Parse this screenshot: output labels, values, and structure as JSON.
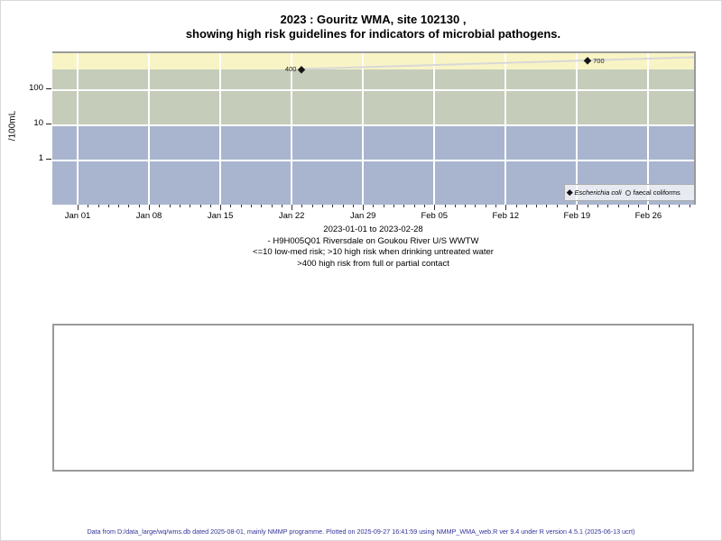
{
  "title": {
    "line1": "2023 : Gouritz WMA, site 102130 ,",
    "line2": "showing high risk guidelines for indicators of microbial pathogens."
  },
  "caption": {
    "line1": "2023-01-01 to 2023-02-28",
    "line2": "- H9H005Q01 Riversdale on Goukou River U/S WWTW",
    "line3": "<=10 low-med risk; >10 high risk when drinking untreated water",
    "line4": ">400 high risk from full or partial contact"
  },
  "footer": "Data from D:/data_large/wq/wms.db dated 2025-08-01, mainly NMMP programme. Plotted on 2025-09-27 16:41:59 using NMMP_WMA_web.R ver 9.4 under R version 4.5.1 (2025-06-13 ucrt)",
  "legend": {
    "items": [
      {
        "label": "Escherichia coli",
        "marker": "filled-diamond"
      },
      {
        "label": "faecal coliforms",
        "marker": "open-circle"
      }
    ]
  },
  "chart_data": {
    "type": "line",
    "title": "2023 : Gouritz WMA, site 102130 , showing high risk guidelines for indicators of microbial pathogens.",
    "ylabel": "/100mL",
    "y_scale": "log10",
    "ylim": [
      0.05,
      1100
    ],
    "y_ticks": [
      100,
      10,
      1
    ],
    "x_axis_range": [
      "2023-01-01",
      "2023-02-28"
    ],
    "x_tick_labels": [
      "Jan 01",
      "Jan 08",
      "Jan 15",
      "Jan 22",
      "Jan 29",
      "Feb 05",
      "Feb 12",
      "Feb 19",
      "Feb 26"
    ],
    "grid": true,
    "line_color": "#d8d8d8",
    "line_extends_past_last_point": true,
    "series": [
      {
        "name": "Escherichia coli",
        "marker": "filled-diamond",
        "color": "#151515",
        "points": [
          {
            "date": "2023-01-23",
            "value": 400,
            "label": "400",
            "label_side": "left"
          },
          {
            "date": "2023-02-20",
            "value": 700,
            "label": "700",
            "label_side": "right"
          }
        ]
      },
      {
        "name": "faecal coliforms",
        "marker": "open-circle",
        "color": "#151515",
        "points": []
      }
    ],
    "bands": [
      {
        "label": ">400 high risk from full or partial contact",
        "from": 400,
        "to": null,
        "color": "#f8f4c5"
      },
      {
        "label": ">10 high risk when drinking untreated water",
        "from": 10,
        "to": 400,
        "color": "#c5ccba"
      },
      {
        "label": "<=10 low-med risk",
        "from": null,
        "to": 10,
        "color": "#a9b5ce"
      }
    ]
  }
}
